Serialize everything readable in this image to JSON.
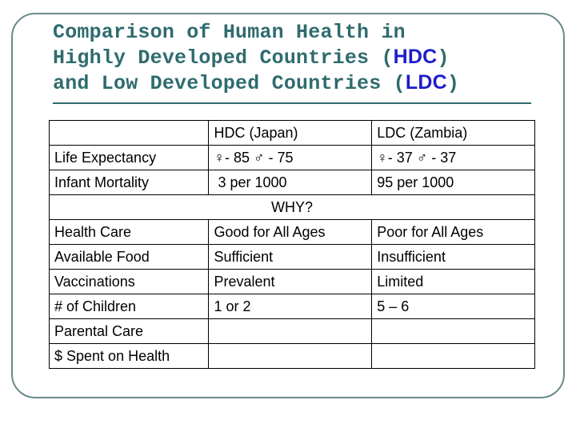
{
  "title": {
    "line1": "Comparison of Human Health in",
    "line2_pre": "Highly Developed Countries (",
    "line2_acc": "HDC",
    "line2_post": ")",
    "line3_pre": "and Low Developed Countries (",
    "line3_acc": "LDC",
    "line3_post": ")"
  },
  "colors": {
    "title": "#2f6b6e",
    "acronym": "#1d1dcc",
    "frame": "#6b8a8c"
  },
  "table": {
    "header": [
      "",
      "HDC (Japan)",
      "LDC (Zambia)"
    ],
    "top_rows": [
      {
        "label": "Life Expectancy",
        "hdc": "♀- 85 ♂ - 75",
        "ldc": "♀- 37 ♂ - 37"
      },
      {
        "label": "Infant Mortality",
        "hdc": " 3 per 1000",
        "ldc": "95 per 1000"
      }
    ],
    "why": "WHY?",
    "bottom_rows": [
      {
        "label": "Health Care",
        "hdc": "Good for All Ages",
        "ldc": "Poor for All Ages"
      },
      {
        "label": "Available Food",
        "hdc": "Sufficient",
        "ldc": "Insufficient"
      },
      {
        "label": "Vaccinations",
        "hdc": "Prevalent",
        "ldc": "Limited"
      },
      {
        "label": "# of Children",
        "hdc": "1 or 2",
        "ldc": "5 – 6"
      },
      {
        "label": "Parental Care",
        "hdc": "",
        "ldc": ""
      },
      {
        "label": "$ Spent on Health",
        "hdc": "",
        "ldc": ""
      }
    ]
  }
}
